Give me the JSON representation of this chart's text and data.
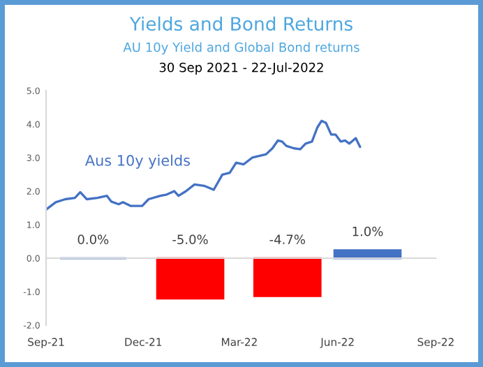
{
  "chart_data": {
    "type": "line",
    "title": "Yields and Bond Returns",
    "subtitle": "AU 10y Yield and Global Bond returns",
    "annotations": [
      "30 Sep 2021 - 22-Jul-2022"
    ],
    "series": [
      {
        "name": "Aus 10y yields",
        "color": "#4472c4",
        "x": [
          "2021-09-30",
          "2021-10-09",
          "2021-10-18",
          "2021-10-27",
          "2021-11-01",
          "2021-11-07",
          "2021-11-17",
          "2021-11-26",
          "2021-11-30",
          "2021-12-07",
          "2021-12-11",
          "2021-12-18",
          "2021-12-29",
          "2022-01-04",
          "2022-01-15",
          "2022-01-21",
          "2022-01-28",
          "2022-02-01",
          "2022-02-08",
          "2022-02-16",
          "2022-02-25",
          "2022-03-06",
          "2022-03-14",
          "2022-03-21",
          "2022-03-27",
          "2022-04-03",
          "2022-04-11",
          "2022-04-24",
          "2022-04-30",
          "2022-05-05",
          "2022-05-09",
          "2022-05-13",
          "2022-05-20",
          "2022-05-26",
          "2022-05-31",
          "2022-06-06",
          "2022-06-11",
          "2022-06-15",
          "2022-06-19",
          "2022-06-24",
          "2022-06-28",
          "2022-07-03",
          "2022-07-07",
          "2022-07-11",
          "2022-07-17",
          "2022-07-21"
        ],
        "values": [
          1.45,
          1.67,
          1.76,
          1.8,
          1.97,
          1.76,
          1.8,
          1.86,
          1.69,
          1.61,
          1.67,
          1.56,
          1.56,
          1.76,
          1.86,
          1.9,
          2.0,
          1.86,
          2.0,
          2.2,
          2.16,
          2.04,
          2.49,
          2.55,
          2.85,
          2.8,
          3.0,
          3.1,
          3.28,
          3.51,
          3.48,
          3.35,
          3.28,
          3.25,
          3.42,
          3.48,
          3.9,
          4.1,
          4.04,
          3.69,
          3.69,
          3.48,
          3.51,
          3.42,
          3.58,
          3.32
        ]
      },
      {
        "type": "bar",
        "axis": "y2",
        "x": [
          "2021-11-13",
          "2022-02-12",
          "2022-05-14",
          "2022-07-28"
        ],
        "values": [
          0.0,
          -5.0,
          -4.7,
          1.0
        ],
        "colors": [
          "#4472c4",
          "#ff0000",
          "#ff0000",
          "#4472c4"
        ],
        "value_labels": [
          "0.0%",
          "-5.0%",
          "-4.7%",
          "1.0%"
        ]
      }
    ],
    "xlim": [
      "2021-09-30",
      "2022-09-30"
    ],
    "xticks": [
      {
        "value": "2021-09-30",
        "label": "Sep-21"
      },
      {
        "value": "2021-12-30",
        "label": "Dec-21"
      },
      {
        "value": "2022-03-30",
        "label": "Mar-22"
      },
      {
        "value": "2022-06-30",
        "label": "Jun-22"
      },
      {
        "value": "2022-09-30",
        "label": "Sep-22"
      }
    ],
    "ylim": [
      -2,
      5
    ],
    "yticks": [
      {
        "value": 5,
        "label": "5.0"
      },
      {
        "value": 4,
        "label": "4.0"
      },
      {
        "value": 3,
        "label": "3.0"
      },
      {
        "value": 2,
        "label": "2.0"
      },
      {
        "value": 1,
        "label": "1.0"
      },
      {
        "value": 0,
        "label": "0.0"
      },
      {
        "value": -1,
        "label": "-1.0"
      },
      {
        "value": -2,
        "label": "-2.0"
      }
    ],
    "y2lim": [
      -8.3,
      20.8
    ],
    "legend": false
  }
}
